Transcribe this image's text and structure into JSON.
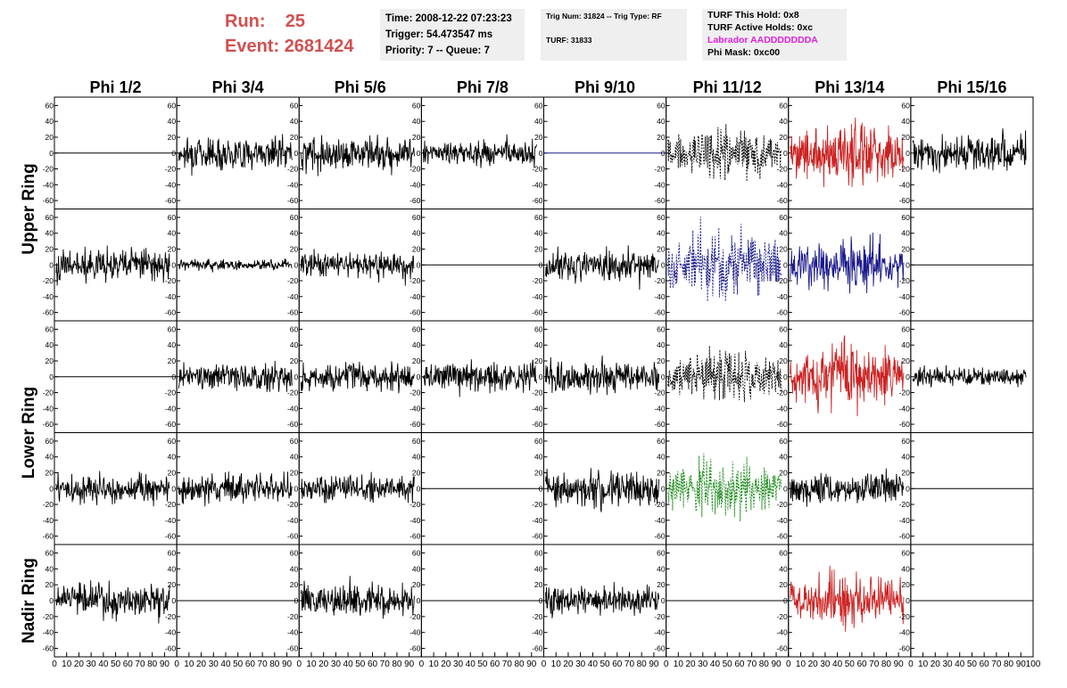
{
  "header": {
    "run_label": "Run:",
    "run_value": "25",
    "event_label": "Event:",
    "event_value": "2681424",
    "time": "Time: 2008-12-22 07:23:23",
    "trigger": "Trigger: 54.473547 ms",
    "priority": "Priority: 7 -- Queue: 7",
    "trig_num": "Trig Num: 31824 -- Trig Type: RF",
    "turf": "TURF: 31833",
    "turf_hold": "TURF This Hold: 0x8",
    "turf_active": "TURF Active Holds: 0xc",
    "labrador": "Labrador AADDDDDDDA",
    "phi_mask": "Phi Mask: 0xc00"
  },
  "colors": {
    "black": "#000000",
    "red": "#cc2222",
    "blue": "#1a1a8c",
    "green": "#1e8c1e",
    "header_red": "#d05050",
    "magenta": "#e020e0"
  },
  "chart_data": {
    "type": "line",
    "columns": [
      "Phi 1/2",
      "Phi 3/4",
      "Phi 5/6",
      "Phi 7/8",
      "Phi 9/10",
      "Phi 11/12",
      "Phi 13/14",
      "Phi 15/16"
    ],
    "rows": [
      "Upper Ring",
      "Lower Ring",
      "Nadir Ring"
    ],
    "y_ticks": [
      60,
      40,
      20,
      0,
      -20,
      -40,
      -60
    ],
    "ylim": [
      -65,
      65
    ],
    "x_ticks": [
      0,
      10,
      20,
      30,
      40,
      50,
      60,
      70,
      80,
      90,
      100
    ],
    "xlim": [
      0,
      100
    ],
    "panels": [
      [
        "flat",
        "noise:18",
        "noise:18",
        "noise:14",
        "flat-blue",
        "dash-black:22",
        "red:28",
        "noise:20"
      ],
      [
        "noise:18",
        "noise:6",
        "noise:16",
        "flat",
        "noise:18",
        "dash-blue:30",
        "blue:24",
        "flat"
      ],
      [
        "flat",
        "noise:16",
        "noise:16",
        "noise:16",
        "noise:18",
        "dash-black:22",
        "red:30",
        "noise:10"
      ],
      [
        "noise:16",
        "noise:16",
        "noise:16",
        "flat",
        "noise:20",
        "dash-green:26",
        "noise:18",
        "flat"
      ],
      [
        "noise:18",
        "flat",
        "noise:18",
        "flat",
        "noise:16",
        "flat",
        "red:24",
        "flat"
      ]
    ]
  }
}
